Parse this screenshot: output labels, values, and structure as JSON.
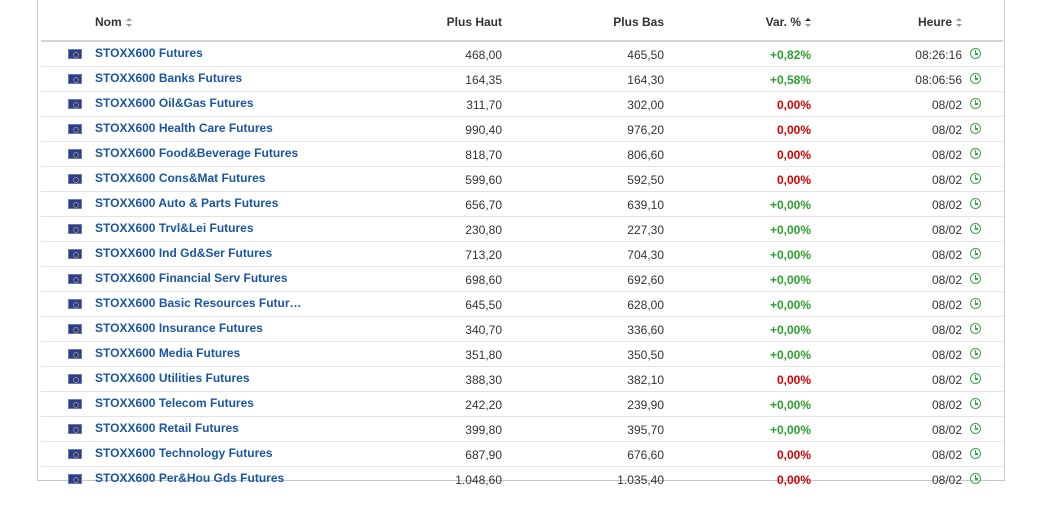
{
  "table": {
    "headers": {
      "name": "Nom",
      "high": "Plus Haut",
      "low": "Plus Bas",
      "change": "Var. %",
      "time": "Heure"
    },
    "rows": [
      {
        "name": "STOXX600 Futures",
        "high": "468,00",
        "low": "465,50",
        "change": "+0,82%",
        "dir": "pos",
        "time": "08:26:16"
      },
      {
        "name": "STOXX600 Banks Futures",
        "high": "164,35",
        "low": "164,30",
        "change": "+0,58%",
        "dir": "pos",
        "time": "08:06:56"
      },
      {
        "name": "STOXX600 Oil&Gas Futures",
        "high": "311,70",
        "low": "302,00",
        "change": "0,00%",
        "dir": "neg",
        "time": "08/02"
      },
      {
        "name": "STOXX600 Health Care Futures",
        "high": "990,40",
        "low": "976,20",
        "change": "0,00%",
        "dir": "neg",
        "time": "08/02"
      },
      {
        "name": "STOXX600 Food&Beverage Futures",
        "high": "818,70",
        "low": "806,60",
        "change": "0,00%",
        "dir": "neg",
        "time": "08/02"
      },
      {
        "name": "STOXX600 Cons&Mat Futures",
        "high": "599,60",
        "low": "592,50",
        "change": "0,00%",
        "dir": "neg",
        "time": "08/02"
      },
      {
        "name": "STOXX600 Auto & Parts Futures",
        "high": "656,70",
        "low": "639,10",
        "change": "+0,00%",
        "dir": "pos",
        "time": "08/02"
      },
      {
        "name": "STOXX600 Trvl&Lei Futures",
        "high": "230,80",
        "low": "227,30",
        "change": "+0,00%",
        "dir": "pos",
        "time": "08/02"
      },
      {
        "name": "STOXX600 Ind Gd&Ser Futures",
        "high": "713,20",
        "low": "704,30",
        "change": "+0,00%",
        "dir": "pos",
        "time": "08/02"
      },
      {
        "name": "STOXX600 Financial Serv Futures",
        "high": "698,60",
        "low": "692,60",
        "change": "+0,00%",
        "dir": "pos",
        "time": "08/02"
      },
      {
        "name": "STOXX600 Basic Resources Futur…",
        "high": "645,50",
        "low": "628,00",
        "change": "+0,00%",
        "dir": "pos",
        "time": "08/02"
      },
      {
        "name": "STOXX600 Insurance Futures",
        "high": "340,70",
        "low": "336,60",
        "change": "+0,00%",
        "dir": "pos",
        "time": "08/02"
      },
      {
        "name": "STOXX600 Media Futures",
        "high": "351,80",
        "low": "350,50",
        "change": "+0,00%",
        "dir": "pos",
        "time": "08/02"
      },
      {
        "name": "STOXX600 Utilities Futures",
        "high": "388,30",
        "low": "382,10",
        "change": "0,00%",
        "dir": "neg",
        "time": "08/02"
      },
      {
        "name": "STOXX600 Telecom Futures",
        "high": "242,20",
        "low": "239,90",
        "change": "+0,00%",
        "dir": "pos",
        "time": "08/02"
      },
      {
        "name": "STOXX600 Retail Futures",
        "high": "399,80",
        "low": "395,70",
        "change": "+0,00%",
        "dir": "pos",
        "time": "08/02"
      },
      {
        "name": "STOXX600 Technology Futures",
        "high": "687,90",
        "low": "676,60",
        "change": "0,00%",
        "dir": "neg",
        "time": "08/02"
      },
      {
        "name": "STOXX600 Per&Hou Gds Futures",
        "high": "1.048,60",
        "low": "1.035,40",
        "change": "0,00%",
        "dir": "neg",
        "time": "08/02"
      }
    ]
  },
  "icons": {
    "flag": "eu-flag-icon",
    "clock": "clock-icon"
  },
  "colors": {
    "link": "#1a56a3",
    "positive": "#2ca02c",
    "negative": "#d40000",
    "clock": "#3ca73c"
  }
}
